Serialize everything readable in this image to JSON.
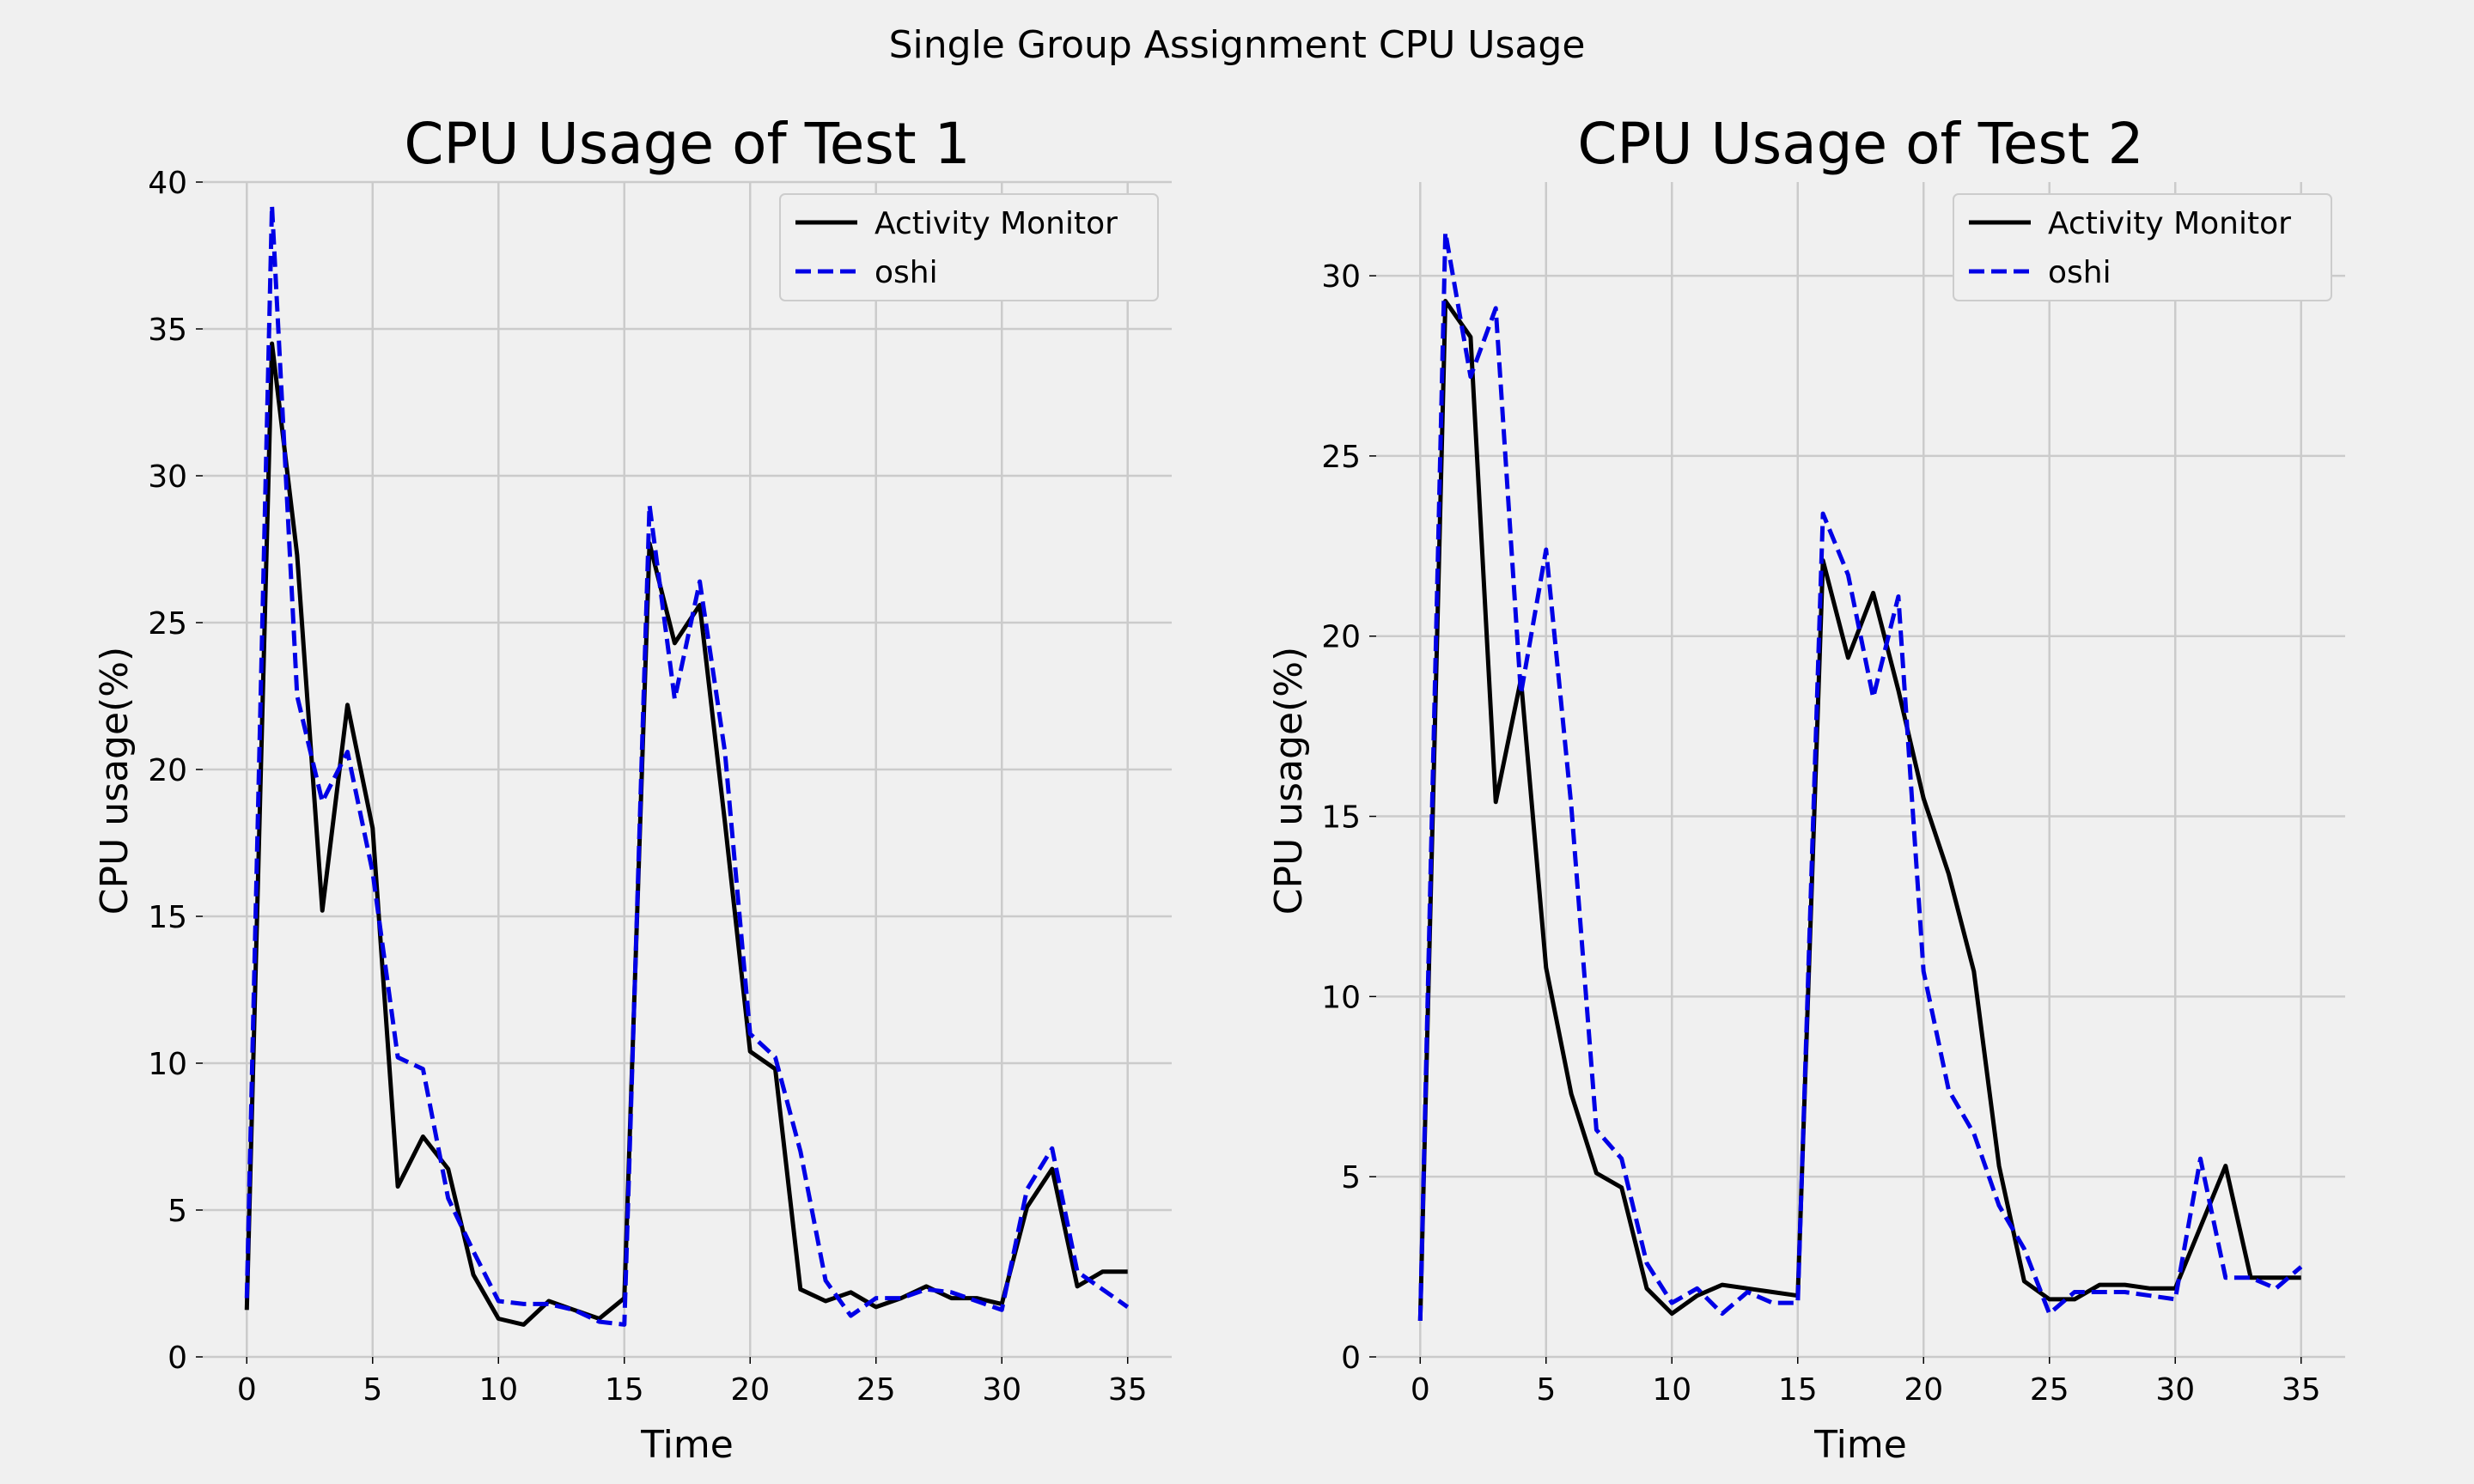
{
  "figure": {
    "suptitle": "Single Group Assignment CPU Usage",
    "background": "#f0f0f0",
    "grid_color": "#cbcbcb"
  },
  "chart_data": [
    {
      "type": "line",
      "title": "CPU Usage of Test 1",
      "xlabel": "Time",
      "ylabel": "CPU usage(%)",
      "xlim": [
        -1.75,
        36.75
      ],
      "ylim": [
        0,
        40
      ],
      "xticks": [
        0,
        5,
        10,
        15,
        20,
        25,
        30,
        35
      ],
      "yticks": [
        0,
        5,
        10,
        15,
        20,
        25,
        30,
        35,
        40
      ],
      "grid": true,
      "legend_position": "top-right",
      "x": [
        0,
        1,
        2,
        3,
        4,
        5,
        6,
        7,
        8,
        9,
        10,
        11,
        12,
        13,
        14,
        15,
        16,
        17,
        18,
        19,
        20,
        21,
        22,
        23,
        24,
        25,
        26,
        27,
        28,
        29,
        30,
        31,
        32,
        33,
        34,
        35
      ],
      "series": [
        {
          "name": "Activity Monitor",
          "color": "#000000",
          "dash": "solid",
          "values": [
            1.6,
            34.5,
            27.3,
            15.2,
            22.2,
            18.0,
            5.8,
            7.5,
            6.4,
            2.8,
            1.3,
            1.1,
            1.9,
            1.6,
            1.3,
            2.0,
            27.7,
            24.3,
            25.6,
            18.2,
            10.4,
            9.8,
            2.3,
            1.9,
            2.2,
            1.7,
            2.0,
            2.4,
            2.0,
            2.0,
            1.8,
            5.1,
            6.4,
            2.4,
            2.9,
            2.9
          ]
        },
        {
          "name": "oshi",
          "color": "#0000e6",
          "dash": "dashed",
          "values": [
            2.0,
            39.2,
            22.5,
            18.9,
            20.6,
            16.5,
            10.2,
            9.8,
            5.4,
            3.6,
            1.9,
            1.8,
            1.8,
            1.6,
            1.2,
            1.1,
            29.0,
            22.4,
            26.4,
            20.6,
            11.0,
            10.2,
            7.0,
            2.6,
            1.4,
            2.0,
            2.0,
            2.3,
            2.2,
            1.9,
            1.6,
            5.7,
            7.1,
            2.9,
            2.3,
            1.7
          ]
        }
      ]
    },
    {
      "type": "line",
      "title": "CPU Usage of Test 2",
      "xlabel": "Time",
      "ylabel": "CPU usage(%)",
      "xlim": [
        -1.75,
        36.75
      ],
      "ylim": [
        0,
        32.6
      ],
      "xticks": [
        0,
        5,
        10,
        15,
        20,
        25,
        30,
        35
      ],
      "yticks": [
        0,
        5,
        10,
        15,
        20,
        25,
        30
      ],
      "grid": true,
      "legend_position": "top-right",
      "x": [
        0,
        1,
        2,
        3,
        4,
        5,
        6,
        7,
        8,
        9,
        10,
        11,
        12,
        13,
        14,
        15,
        16,
        17,
        18,
        19,
        20,
        21,
        22,
        23,
        24,
        25,
        26,
        27,
        28,
        29,
        30,
        31,
        32,
        33,
        34,
        35
      ],
      "series": [
        {
          "name": "Activity Monitor",
          "color": "#000000",
          "dash": "solid",
          "values": [
            1.0,
            29.3,
            28.3,
            15.4,
            18.8,
            10.8,
            7.3,
            5.1,
            4.7,
            1.9,
            1.2,
            1.7,
            2.0,
            1.9,
            1.8,
            1.7,
            22.1,
            19.4,
            21.2,
            18.5,
            15.5,
            13.4,
            10.7,
            5.3,
            2.1,
            1.6,
            1.6,
            2.0,
            2.0,
            1.9,
            1.9,
            3.6,
            5.3,
            2.2,
            2.2,
            2.2
          ]
        },
        {
          "name": "oshi",
          "color": "#0000e6",
          "dash": "dashed",
          "values": [
            1.0,
            31.2,
            27.2,
            29.1,
            18.4,
            22.4,
            15.3,
            6.3,
            5.5,
            2.6,
            1.5,
            1.9,
            1.2,
            1.8,
            1.5,
            1.5,
            23.4,
            21.7,
            18.3,
            21.1,
            10.7,
            7.4,
            6.2,
            4.2,
            3.0,
            1.2,
            1.8,
            1.8,
            1.8,
            1.7,
            1.6,
            5.5,
            2.2,
            2.2,
            1.9,
            2.5
          ]
        }
      ]
    }
  ]
}
